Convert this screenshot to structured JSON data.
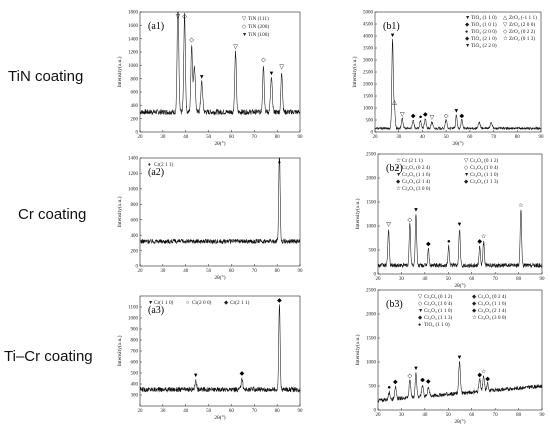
{
  "row_labels": [
    "TiN coating",
    "Cr coating",
    "Ti–Cr coating"
  ],
  "chart_data": [
    {
      "id": "a1",
      "type": "line",
      "panel_label": "(a1)",
      "xlabel": "2θ(°)",
      "ylabel": "Intensity(a.u.)",
      "xlim": [
        20,
        90
      ],
      "ylim": [
        0,
        1800
      ],
      "xticks": [
        20,
        30,
        40,
        50,
        60,
        70,
        80,
        90
      ],
      "yticks": [
        0,
        200,
        400,
        600,
        800,
        1000,
        1200,
        1400,
        1600,
        1800
      ],
      "legend_position": "top-right",
      "legend": [
        {
          "symbol": "▽",
          "label": "TiN (111)"
        },
        {
          "symbol": "◇",
          "label": "TiN (200)"
        },
        {
          "symbol": "▼",
          "label": "TiN (100)"
        }
      ],
      "baseline": 300,
      "noise": 40,
      "peaks": [
        {
          "x": 36.6,
          "y": 1700,
          "w": 0.35,
          "marker": "▽"
        },
        {
          "x": 39.5,
          "y": 1450,
          "w": 0.35,
          "marker": "◇"
        },
        {
          "x": 42.6,
          "y": 1000,
          "w": 0.35,
          "marker": "◇"
        },
        {
          "x": 43.8,
          "y": 700,
          "w": 0.4
        },
        {
          "x": 47.0,
          "y": 450,
          "w": 0.4,
          "marker": "▼"
        },
        {
          "x": 61.8,
          "y": 900,
          "w": 0.35,
          "marker": "▽"
        },
        {
          "x": 74.0,
          "y": 700,
          "w": 0.35,
          "marker": "◇"
        },
        {
          "x": 77.5,
          "y": 500,
          "w": 0.4,
          "marker": "▼"
        },
        {
          "x": 82.0,
          "y": 600,
          "w": 0.35,
          "marker": "▽"
        }
      ]
    },
    {
      "id": "b1",
      "type": "line",
      "panel_label": "(b1)",
      "xlabel": "2θ(°)",
      "ylabel": "Intensity(a.u.)",
      "xlim": [
        20,
        90
      ],
      "ylim": [
        0,
        5000
      ],
      "xticks": [
        20,
        30,
        40,
        50,
        60,
        70,
        80,
        90
      ],
      "yticks": [
        0,
        500,
        1000,
        1500,
        2000,
        2500,
        3000,
        3500,
        4000,
        4500,
        5000
      ],
      "legend_position": "top-right",
      "legend": [
        {
          "symbol": "▼",
          "label": "TiO₂ (1 1 0)"
        },
        {
          "symbol": "△",
          "label": "ZrO₂ (-1 1 1)"
        },
        {
          "symbol": "◆",
          "label": "TiO₂ (1 0 1)"
        },
        {
          "symbol": "▽",
          "label": "ZrO₂ (2 0 0)"
        },
        {
          "symbol": "●",
          "label": "TiO₂ (2 0 0)"
        },
        {
          "symbol": "◇",
          "label": "ZrO₂ (0 2 2)"
        },
        {
          "symbol": "◆",
          "label": "TiO₂ (2 1 0)"
        },
        {
          "symbol": "☆",
          "label": "ZrO₂ (0 1 3)"
        },
        {
          "symbol": "▼",
          "label": "TiO₂ (2 2 0)"
        }
      ],
      "baseline": 150,
      "noise": 50,
      "peaks": [
        {
          "x": 27.4,
          "y": 3700,
          "w": 0.3,
          "marker": "▼"
        },
        {
          "x": 28.2,
          "y": 900,
          "w": 0.3,
          "marker": "△"
        },
        {
          "x": 31.5,
          "y": 400,
          "w": 0.35,
          "marker": "▽"
        },
        {
          "x": 36.1,
          "y": 350,
          "w": 0.35,
          "marker": "◆"
        },
        {
          "x": 39.2,
          "y": 300,
          "w": 0.35,
          "marker": "●"
        },
        {
          "x": 41.2,
          "y": 400,
          "w": 0.35,
          "marker": "◆"
        },
        {
          "x": 44.0,
          "y": 280,
          "w": 0.35,
          "marker": "▽"
        },
        {
          "x": 50.0,
          "y": 350,
          "w": 0.35,
          "marker": "◇"
        },
        {
          "x": 54.3,
          "y": 550,
          "w": 0.3,
          "marker": "▼"
        },
        {
          "x": 56.6,
          "y": 350,
          "w": 0.35,
          "marker": "◆"
        },
        {
          "x": 64.0,
          "y": 250,
          "w": 0.4
        },
        {
          "x": 69.0,
          "y": 260,
          "w": 0.4
        }
      ]
    },
    {
      "id": "a2",
      "type": "line",
      "panel_label": "(a2)",
      "xlabel": "2θ(°)",
      "ylabel": "Intensity(a.u.)",
      "xlim": [
        20,
        90
      ],
      "ylim": [
        0,
        1400
      ],
      "xticks": [
        20,
        30,
        40,
        50,
        60,
        70,
        80,
        90
      ],
      "yticks": [
        0,
        200,
        400,
        600,
        800,
        1000,
        1200,
        1400
      ],
      "legend_position": "top-left",
      "legend": [
        {
          "symbol": "♦",
          "label": "Cr(2 1 1)"
        }
      ],
      "baseline": 320,
      "noise": 30,
      "peaks": [
        {
          "x": 81.0,
          "y": 1200,
          "w": 0.3,
          "marker": "♦"
        }
      ]
    },
    {
      "id": "b2",
      "type": "line",
      "panel_label": "(b2)",
      "xlabel": "2θ(°)",
      "ylabel": "Intensity(a.u.)",
      "xlim": [
        20,
        90
      ],
      "ylim": [
        0,
        2500
      ],
      "xticks": [
        20,
        30,
        40,
        50,
        60,
        70,
        80,
        90
      ],
      "yticks": [
        0,
        500,
        1000,
        1500,
        2000,
        2500
      ],
      "legend_position": "top-right",
      "legend": [
        {
          "symbol": "☆",
          "label": "Cr (2 1 1)"
        },
        {
          "symbol": "▽",
          "label": "Cr₂O₃ (0 1 2)"
        },
        {
          "symbol": "●",
          "label": "Cr₂O₃ (0 2 4)"
        },
        {
          "symbol": "◇",
          "label": "Cr₂O₃ (1 0 4)"
        },
        {
          "symbol": "▼",
          "label": "Cr₂O₃ (1 1 6)"
        },
        {
          "symbol": "▼",
          "label": "Cr₂O₃ (1 1 0)"
        },
        {
          "symbol": "◆",
          "label": "Cr₂O₃ (2 1 4)"
        },
        {
          "symbol": "◆",
          "label": "Cr₂O₃ (1 1 3)"
        },
        {
          "symbol": "☆",
          "label": "Cr₂O₃ (3 0 0)"
        }
      ],
      "baseline": 180,
      "noise": 45,
      "peaks": [
        {
          "x": 24.5,
          "y": 750,
          "w": 0.3,
          "marker": "▽"
        },
        {
          "x": 33.6,
          "y": 850,
          "w": 0.3,
          "marker": "◇"
        },
        {
          "x": 36.2,
          "y": 1050,
          "w": 0.3,
          "marker": "▼"
        },
        {
          "x": 41.5,
          "y": 350,
          "w": 0.3,
          "marker": "◆"
        },
        {
          "x": 50.2,
          "y": 400,
          "w": 0.3,
          "marker": "●"
        },
        {
          "x": 54.8,
          "y": 750,
          "w": 0.3,
          "marker": "▼"
        },
        {
          "x": 63.4,
          "y": 400,
          "w": 0.3,
          "marker": "◆"
        },
        {
          "x": 65.1,
          "y": 500,
          "w": 0.3,
          "marker": "☆"
        },
        {
          "x": 81.0,
          "y": 1150,
          "w": 0.3,
          "marker": "☆"
        }
      ]
    },
    {
      "id": "a3",
      "type": "line",
      "panel_label": "(a3)",
      "xlabel": "2θ(°)",
      "ylabel": "Intensity(a.u.)",
      "xlim": [
        20,
        90
      ],
      "ylim": [
        200,
        1200
      ],
      "xticks": [
        20,
        30,
        40,
        50,
        60,
        70,
        80,
        90
      ],
      "yticks": [
        300,
        400,
        500,
        600,
        700,
        800,
        900,
        1000,
        1100
      ],
      "legend_position": "top-left",
      "legend": [
        {
          "symbol": "▼",
          "label": "Cr(1 1 0)"
        },
        {
          "symbol": "○",
          "label": "Cr(2 0 0)"
        },
        {
          "symbol": "◆",
          "label": "Cr(2 1 1)"
        }
      ],
      "baseline": 350,
      "noise": 22,
      "peaks": [
        {
          "x": 44.4,
          "y": 80,
          "w": 0.35,
          "marker": "▼"
        },
        {
          "x": 64.6,
          "y": 100,
          "w": 0.35,
          "marker": "◆"
        },
        {
          "x": 81.0,
          "y": 780,
          "w": 0.3,
          "marker": "◆"
        }
      ]
    },
    {
      "id": "b3",
      "type": "line",
      "panel_label": "(b3)",
      "xlabel": "2θ(°)",
      "ylabel": "Intensity(a.u.)",
      "xlim": [
        20,
        90
      ],
      "ylim": [
        0,
        2500
      ],
      "xticks": [
        20,
        30,
        40,
        50,
        60,
        70,
        80,
        90
      ],
      "yticks": [
        0,
        500,
        1000,
        1500,
        2000,
        2500
      ],
      "legend_position": "top-right",
      "legend": [
        {
          "symbol": "▽",
          "label": "Cr₂O₃ (0 1 2)"
        },
        {
          "symbol": "◆",
          "label": "Cr₂O₃ (0 2 4)"
        },
        {
          "symbol": "◇",
          "label": "Cr₂O₃ (1 0 4)"
        },
        {
          "symbol": "◆",
          "label": "Cr₂O₃ (1 1 6)"
        },
        {
          "symbol": "▼",
          "label": "Cr₂O₃ (1 1 0)"
        },
        {
          "symbol": "◆",
          "label": "Cr₂O₃ (2 1 4)"
        },
        {
          "symbol": "◆",
          "label": "Cr₂O₃ (1 1 3)"
        },
        {
          "symbol": "☆",
          "label": "Cr₂O₃ (3 0 0)"
        },
        {
          "symbol": "●",
          "label": "TiO₂ (1 1 0)"
        }
      ],
      "baseline": 200,
      "noise": 40,
      "baseline_slope": 300,
      "peaks": [
        {
          "x": 24.8,
          "y": 150,
          "w": 0.35,
          "marker": "●"
        },
        {
          "x": 27.4,
          "y": 250,
          "w": 0.35,
          "marker": "◆"
        },
        {
          "x": 33.6,
          "y": 350,
          "w": 0.35,
          "marker": "◇"
        },
        {
          "x": 36.2,
          "y": 500,
          "w": 0.35,
          "marker": "▼"
        },
        {
          "x": 39.0,
          "y": 250,
          "w": 0.35,
          "marker": "◆"
        },
        {
          "x": 41.5,
          "y": 200,
          "w": 0.35,
          "marker": "◆"
        },
        {
          "x": 54.8,
          "y": 650,
          "w": 0.35,
          "marker": "▼"
        },
        {
          "x": 63.4,
          "y": 250,
          "w": 0.35,
          "marker": "◆"
        },
        {
          "x": 65.1,
          "y": 300,
          "w": 0.35,
          "marker": "☆"
        },
        {
          "x": 66.8,
          "y": 150,
          "w": 0.35,
          "marker": "◆"
        }
      ]
    }
  ]
}
